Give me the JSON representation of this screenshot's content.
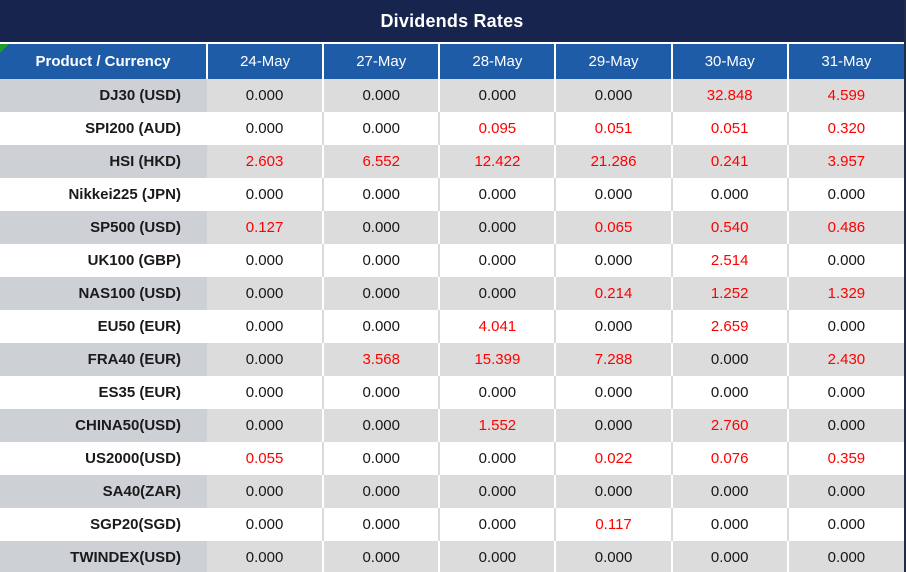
{
  "title": "Dividends Rates",
  "table": {
    "product_header": "Product / Currency",
    "date_headers": [
      "24-May",
      "27-May",
      "28-May",
      "29-May",
      "30-May",
      "31-May"
    ],
    "rows": [
      {
        "product": "DJ30 (USD)",
        "values": [
          "0.000",
          "0.000",
          "0.000",
          "0.000",
          "32.848",
          "4.599"
        ]
      },
      {
        "product": "SPI200 (AUD)",
        "values": [
          "0.000",
          "0.000",
          "0.095",
          "0.051",
          "0.051",
          "0.320"
        ]
      },
      {
        "product": "HSI (HKD)",
        "values": [
          "2.603",
          "6.552",
          "12.422",
          "21.286",
          "0.241",
          "3.957"
        ]
      },
      {
        "product": "Nikkei225 (JPN)",
        "values": [
          "0.000",
          "0.000",
          "0.000",
          "0.000",
          "0.000",
          "0.000"
        ]
      },
      {
        "product": "SP500 (USD)",
        "values": [
          "0.127",
          "0.000",
          "0.000",
          "0.065",
          "0.540",
          "0.486"
        ]
      },
      {
        "product": "UK100 (GBP)",
        "values": [
          "0.000",
          "0.000",
          "0.000",
          "0.000",
          "2.514",
          "0.000"
        ]
      },
      {
        "product": "NAS100 (USD)",
        "values": [
          "0.000",
          "0.000",
          "0.000",
          "0.214",
          "1.252",
          "1.329"
        ]
      },
      {
        "product": "EU50 (EUR)",
        "values": [
          "0.000",
          "0.000",
          "4.041",
          "0.000",
          "2.659",
          "0.000"
        ]
      },
      {
        "product": "FRA40 (EUR)",
        "values": [
          "0.000",
          "3.568",
          "15.399",
          "7.288",
          "0.000",
          "2.430"
        ]
      },
      {
        "product": "ES35 (EUR)",
        "values": [
          "0.000",
          "0.000",
          "0.000",
          "0.000",
          "0.000",
          "0.000"
        ]
      },
      {
        "product": "CHINA50(USD)",
        "values": [
          "0.000",
          "0.000",
          "1.552",
          "0.000",
          "2.760",
          "0.000"
        ]
      },
      {
        "product": "US2000(USD)",
        "values": [
          "0.055",
          "0.000",
          "0.000",
          "0.022",
          "0.076",
          "0.359"
        ]
      },
      {
        "product": "SA40(ZAR)",
        "values": [
          "0.000",
          "0.000",
          "0.000",
          "0.000",
          "0.000",
          "0.000"
        ]
      },
      {
        "product": "SGP20(SGD)",
        "values": [
          "0.000",
          "0.000",
          "0.000",
          "0.117",
          "0.000",
          "0.000"
        ]
      },
      {
        "product": "TWINDEX(USD)",
        "values": [
          "0.000",
          "0.000",
          "0.000",
          "0.000",
          "0.000",
          "0.000"
        ]
      }
    ]
  },
  "colors": {
    "title_bar": "#17254e",
    "header_blue": "#1e5ca8",
    "row_gray": "#dcdcdc",
    "product_gray": "#cdd1d6",
    "row_white": "#ffffff",
    "value_red": "#fe0000",
    "value_black": "#161616",
    "corner_flag_green": "#1f9d2a"
  }
}
